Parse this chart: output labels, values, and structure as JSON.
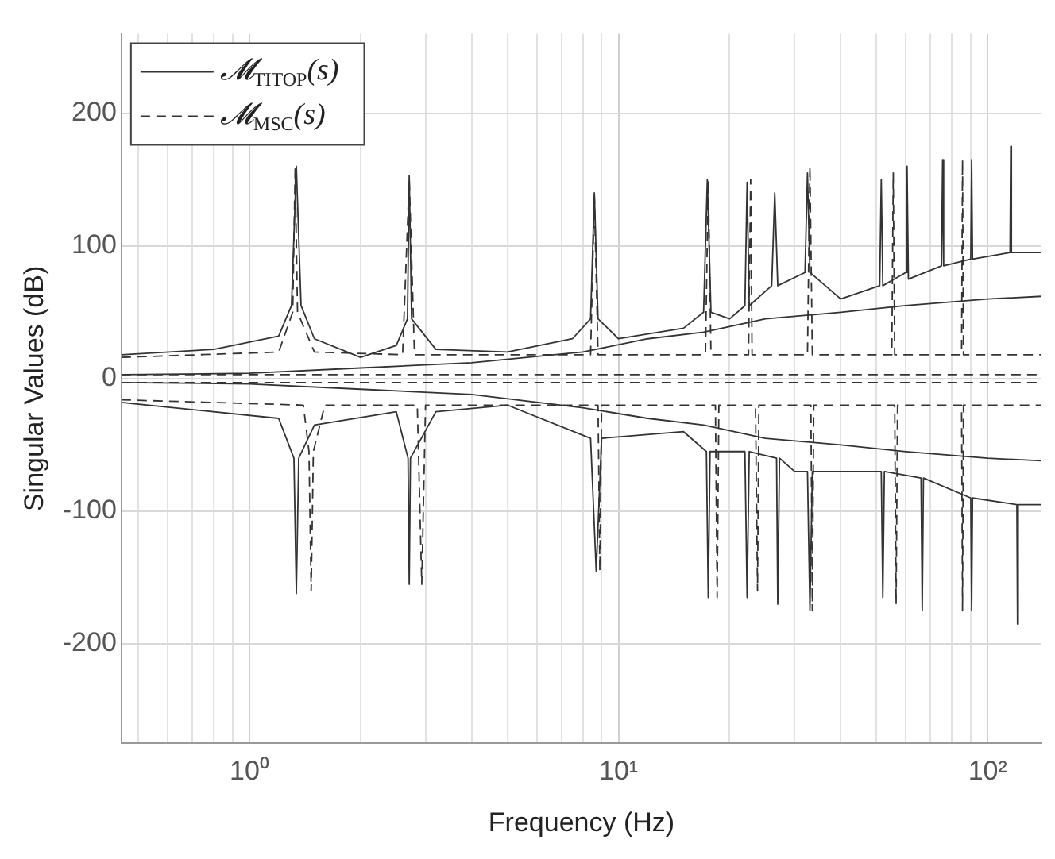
{
  "chart_data": {
    "type": "line",
    "xlabel": "Frequency (Hz)",
    "ylabel": "Singular Values (dB)",
    "log": "x",
    "xlim": [
      0.45,
      140
    ],
    "ylim": [
      -275,
      260
    ],
    "xticks": [
      {
        "value": 0.5,
        "label": null
      },
      {
        "value": 0.6,
        "label": null
      },
      {
        "value": 0.7,
        "label": null
      },
      {
        "value": 0.8,
        "label": null
      },
      {
        "value": 0.9,
        "label": null
      },
      {
        "value": 1,
        "label": "10⁰"
      },
      {
        "value": 2,
        "label": null
      },
      {
        "value": 3,
        "label": null
      },
      {
        "value": 4,
        "label": null
      },
      {
        "value": 5,
        "label": null
      },
      {
        "value": 6,
        "label": null
      },
      {
        "value": 7,
        "label": null
      },
      {
        "value": 8,
        "label": null
      },
      {
        "value": 9,
        "label": null
      },
      {
        "value": 10,
        "label": "10¹"
      },
      {
        "value": 20,
        "label": null
      },
      {
        "value": 30,
        "label": null
      },
      {
        "value": 40,
        "label": null
      },
      {
        "value": 50,
        "label": null
      },
      {
        "value": 60,
        "label": null
      },
      {
        "value": 70,
        "label": null
      },
      {
        "value": 80,
        "label": null
      },
      {
        "value": 90,
        "label": null
      },
      {
        "value": 100,
        "label": "10²"
      }
    ],
    "yticks": [
      -200,
      -100,
      0,
      100,
      200
    ],
    "grid": true,
    "legend": "top left",
    "marker": "none",
    "series": [
      {
        "name": "𝓜$_{TITOP}$(s)",
        "color": "#333333",
        "line_style": "solid",
        "x": [
          0.45,
          0.8,
          1.2,
          1.3,
          1.34,
          1.38,
          1.5,
          2.0,
          2.5,
          2.68,
          2.71,
          2.75,
          3.2,
          5,
          7.5,
          8.4,
          8.6,
          8.8,
          10,
          15,
          17,
          17.4,
          17.8,
          20,
          22,
          22.3,
          22.6,
          26,
          26.5,
          27,
          32,
          32.5,
          33,
          40,
          51,
          51.5,
          52,
          60,
          60.5,
          61,
          75,
          75.5,
          76,
          90,
          90.5,
          91,
          115,
          115.5,
          116,
          140
        ],
        "values": [
          18,
          22,
          32,
          55,
          160,
          55,
          30,
          16,
          25,
          45,
          153,
          45,
          22,
          20,
          30,
          45,
          140,
          45,
          30,
          38,
          50,
          150,
          50,
          45,
          55,
          148,
          55,
          70,
          140,
          70,
          80,
          155,
          80,
          60,
          70,
          150,
          70,
          80,
          160,
          75,
          85,
          165,
          85,
          90,
          165,
          90,
          95,
          175,
          95,
          95
        ]
      },
      {
        "color": "#333333",
        "line_style": "solid",
        "x": [
          0.45,
          1.2,
          1.32,
          1.34,
          1.36,
          1.5,
          2.5,
          2.69,
          2.71,
          2.73,
          3.2,
          5,
          8.4,
          8.7,
          9,
          15,
          17.3,
          17.5,
          17.7,
          22,
          22.3,
          22.6,
          26.8,
          27,
          27.3,
          30,
          32.5,
          33,
          33.5,
          45,
          51.5,
          52,
          52.5,
          66,
          66.5,
          67,
          90,
          90.5,
          91,
          120,
          120.5,
          121,
          140
        ],
        "values": [
          -18,
          -30,
          -60,
          -162,
          -60,
          -35,
          -25,
          -60,
          -155,
          -60,
          -25,
          -20,
          -45,
          -145,
          -45,
          -40,
          -55,
          -165,
          -55,
          -55,
          -165,
          -55,
          -60,
          -170,
          -60,
          -70,
          -70,
          -175,
          -70,
          -70,
          -70,
          -165,
          -70,
          -75,
          -175,
          -75,
          -90,
          -175,
          -90,
          -95,
          -185,
          -95,
          -95
        ]
      },
      {
        "color": "#333333",
        "line_style": "solid",
        "x": [
          0.45,
          1,
          2,
          4,
          8,
          12,
          17,
          25,
          40,
          60,
          100,
          140
        ],
        "values": [
          3,
          4,
          8,
          12,
          20,
          30,
          35,
          45,
          50,
          55,
          60,
          62
        ]
      },
      {
        "color": "#333333",
        "line_style": "solid",
        "x": [
          0.45,
          1,
          2,
          4,
          8,
          12,
          17,
          25,
          40,
          60,
          100,
          140
        ],
        "values": [
          -3,
          -4,
          -8,
          -12,
          -22,
          -30,
          -35,
          -45,
          -50,
          -55,
          -60,
          -62
        ]
      },
      {
        "name": "𝓜$_{MSC}$(s)",
        "color": "#333333",
        "line_style": "dashed",
        "x": [
          0.45,
          1.2,
          1.31,
          1.33,
          1.35,
          1.5,
          2.6,
          2.71,
          2.8,
          8.4,
          8.6,
          8.8,
          17.2,
          17.5,
          17.8,
          22.5,
          22.8,
          23,
          32.5,
          33,
          33.5,
          55,
          55.5,
          56,
          85,
          85.5,
          86,
          140
        ],
        "values": [
          16,
          20,
          50,
          158,
          50,
          20,
          18,
          150,
          18,
          18,
          138,
          18,
          18,
          150,
          18,
          18,
          150,
          18,
          18,
          160,
          18,
          18,
          155,
          18,
          18,
          165,
          18,
          18
        ]
      },
      {
        "color": "#333333",
        "line_style": "dashed",
        "x": [
          0.45,
          1.4,
          1.45,
          1.47,
          1.49,
          1.6,
          2.85,
          2.93,
          3.0,
          8.8,
          8.9,
          9.0,
          18.3,
          18.5,
          18.7,
          23.5,
          23.8,
          24,
          33.2,
          33.5,
          33.8,
          56,
          56.5,
          57,
          85,
          85.5,
          86,
          140
        ],
        "values": [
          -16,
          -20,
          -55,
          -160,
          -55,
          -20,
          -20,
          -155,
          -20,
          -20,
          -145,
          -20,
          -20,
          -165,
          -20,
          -20,
          -160,
          -20,
          -20,
          -175,
          -20,
          -20,
          -170,
          -20,
          -20,
          -175,
          -20,
          -20
        ]
      },
      {
        "color": "#333333",
        "line_style": "dashed",
        "x": [
          0.45,
          140
        ],
        "values": [
          3,
          3
        ]
      },
      {
        "color": "#333333",
        "line_style": "dashed",
        "x": [
          0.45,
          140
        ],
        "values": [
          -3,
          -3
        ]
      }
    ]
  }
}
